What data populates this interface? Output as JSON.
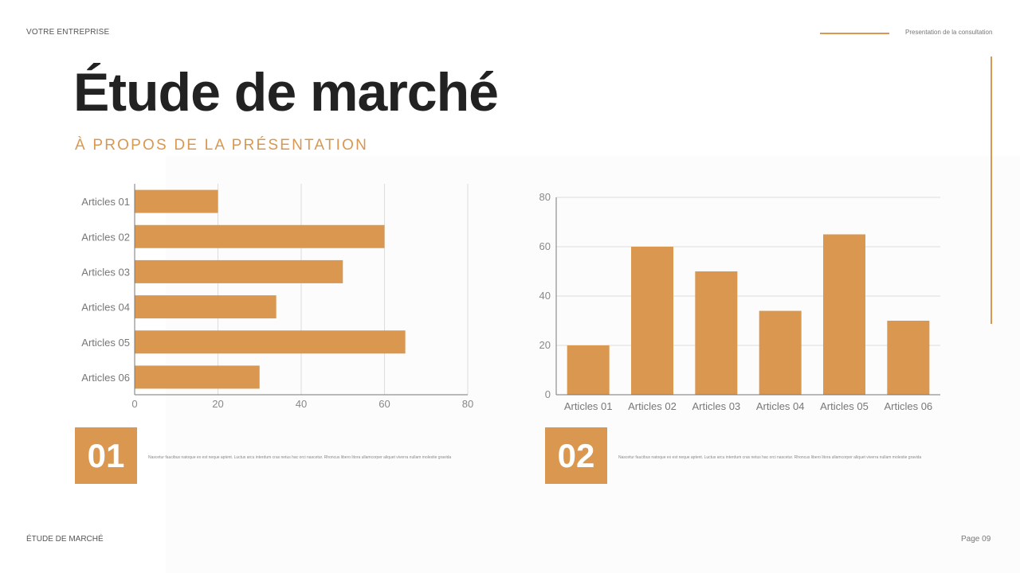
{
  "header": {
    "company": "VOTRE ENTREPRISE",
    "presentation_label": "Presentation de la consultation"
  },
  "title": "Étude de marché",
  "subtitle": "À PROPOS DE LA PRÉSENTATION",
  "colors": {
    "accent": "#d9974f",
    "bar": "#d9974f",
    "text": "#222222",
    "grid": "#dddddd",
    "axis_text": "#888888"
  },
  "chart_data": [
    {
      "type": "bar",
      "orientation": "horizontal",
      "categories": [
        "Articles 01",
        "Articles 02",
        "Articles 03",
        "Articles 04",
        "Articles 05",
        "Articles 06"
      ],
      "values": [
        20,
        60,
        50,
        34,
        65,
        30
      ],
      "xlim": [
        0,
        80
      ],
      "ticks": [
        0,
        20,
        40,
        60,
        80
      ],
      "grid": true,
      "legend": "none"
    },
    {
      "type": "bar",
      "orientation": "vertical",
      "categories": [
        "Articles 01",
        "Articles 02",
        "Articles 03",
        "Articles 04",
        "Articles 05",
        "Articles 06"
      ],
      "values": [
        20,
        60,
        50,
        34,
        65,
        30
      ],
      "ylim": [
        0,
        80
      ],
      "ticks": [
        0,
        20,
        40,
        60,
        80
      ],
      "grid": true,
      "legend": "none"
    }
  ],
  "sections": [
    {
      "number": "01",
      "text": "Nascetur faucibus natoque ex est neque aptent. Luctus arcu interdum cras netus hac orci nascetur. Rhoncus libero litora ullamcorper aliquet viverra nullam molestie gravida"
    },
    {
      "number": "02",
      "text": "Nascetur faucibus natoque ex est neque aptent. Luctus arcu interdum cras netus hac orci nascetur. Rhoncus libero litora ullamcorper aliquet viverra nullam molestie gravida"
    }
  ],
  "footer": {
    "left": "ÉTUDE DE MARCHÉ",
    "page": "Page 09"
  }
}
